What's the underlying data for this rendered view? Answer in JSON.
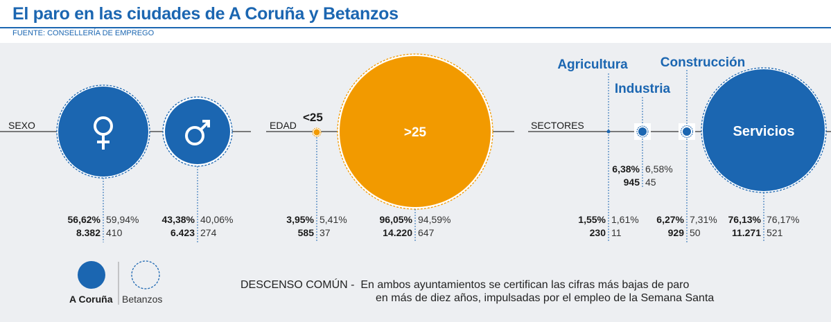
{
  "header": {
    "title": "El paro en las ciudades de A Coruña y Betanzos",
    "source": "FUENTE: CONSELLERÍA DE EMPREGO"
  },
  "colors": {
    "coruna": "#1b66b1",
    "betanzos": "#ffffff",
    "age": "#f29a00",
    "text_dark": "#1a1a1a"
  },
  "legend": {
    "coruna": "A Coruña",
    "betanzos": "Betanzos"
  },
  "footer": {
    "lead": "DESCENSO COMÚN -",
    "line1": "En ambos ayuntamientos se certifican las cifras más bajas de paro",
    "line2": "en más de diez años, impulsadas por el empleo de la Semana Santa"
  },
  "chart_data": [
    {
      "type": "bubble",
      "group": "SEXO",
      "items": [
        {
          "icon": "female-symbol-icon",
          "coruna_pct": "56,62%",
          "coruna_count": "8.382",
          "betanzos_pct": "59,94%",
          "betanzos_count": "410",
          "share": 56.62
        },
        {
          "icon": "male-symbol-icon",
          "coruna_pct": "43,38%",
          "coruna_count": "6.423",
          "betanzos_pct": "40,06%",
          "betanzos_count": "274",
          "share": 43.38
        }
      ]
    },
    {
      "type": "bubble",
      "group": "EDAD",
      "items": [
        {
          "label": "<25",
          "coruna_pct": "3,95%",
          "coruna_count": "585",
          "betanzos_pct": "5,41%",
          "betanzos_count": "37",
          "share": 3.95
        },
        {
          "label": ">25",
          "coruna_pct": "96,05%",
          "coruna_count": "14.220",
          "betanzos_pct": "94,59%",
          "betanzos_count": "647",
          "share": 96.05
        }
      ]
    },
    {
      "type": "bubble",
      "group": "SECTORES",
      "items": [
        {
          "label": "Agricultura",
          "coruna_pct": "1,55%",
          "coruna_count": "230",
          "betanzos_pct": "1,61%",
          "betanzos_count": "11",
          "share": 1.55
        },
        {
          "label": "Industria",
          "coruna_pct": "6,38%",
          "coruna_count": "945",
          "betanzos_pct": "6,58%",
          "betanzos_count": "45",
          "share": 6.38
        },
        {
          "label": "Construcción",
          "coruna_pct": "6,27%",
          "coruna_count": "929",
          "betanzos_pct": "7,31%",
          "betanzos_count": "50",
          "share": 6.27
        },
        {
          "label": "Servicios",
          "coruna_pct": "76,13%",
          "coruna_count": "11.271",
          "betanzos_pct": "76,17%",
          "betanzos_count": "521",
          "share": 76.13
        }
      ]
    }
  ]
}
